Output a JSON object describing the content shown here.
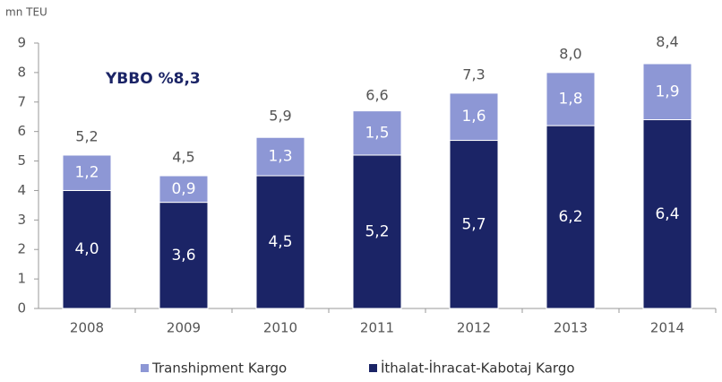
{
  "chart_data": {
    "type": "stacked_bar",
    "y_unit_label": "mn TEU",
    "annotation": "YBBO  %8,3",
    "categories": [
      "2008",
      "2009",
      "2010",
      "2011",
      "2012",
      "2013",
      "2014"
    ],
    "series": [
      {
        "name": "İthalat-İhracat-Kabotaj Kargo",
        "color": "#1b2466",
        "values": [
          4.0,
          3.6,
          4.5,
          5.2,
          5.7,
          6.2,
          6.4
        ],
        "value_labels": [
          "4,0",
          "3,6",
          "4,5",
          "5,2",
          "5,7",
          "6,2",
          "6,4"
        ]
      },
      {
        "name": "Transhipment Kargo",
        "color": "#8d97d5",
        "values": [
          1.2,
          0.9,
          1.3,
          1.5,
          1.6,
          1.8,
          1.9
        ],
        "value_labels": [
          "1,2",
          "0,9",
          "1,3",
          "1,5",
          "1,6",
          "1,8",
          "1,9"
        ]
      }
    ],
    "totals": {
      "values": [
        5.2,
        4.5,
        5.9,
        6.6,
        7.3,
        8.0,
        8.4
      ],
      "value_labels": [
        "5,2",
        "4,5",
        "5,9",
        "6,6",
        "7,3",
        "8,0",
        "8,4"
      ]
    },
    "ylim": [
      0,
      9
    ],
    "yticks": [
      0,
      1,
      2,
      3,
      4,
      5,
      6,
      7,
      8,
      9
    ],
    "grid": false
  }
}
